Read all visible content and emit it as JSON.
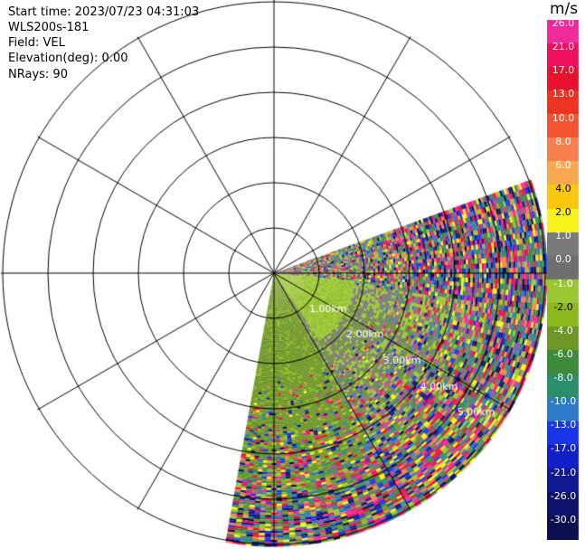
{
  "header": {
    "start_time": "Start time: 2023/07/23 04:31:03",
    "instrument": "WLS200s-181",
    "field": "Field: VEL",
    "elevation": "Elevation(deg): 0.00",
    "nrays": "NRays: 90"
  },
  "chart_data": {
    "type": "heatmap",
    "subtype": "polar-ppi",
    "field": "VEL",
    "units": "m/s",
    "sector_deg": [
      -100,
      20
    ],
    "range_rings_km": [
      1.0,
      2.0,
      3.0,
      4.0,
      5.0
    ],
    "ring_labels": [
      "1.00km",
      "2.00km",
      "3.00km",
      "4.00km",
      "5.00km"
    ],
    "colorbar": {
      "label": "m/s",
      "ticks": [
        "26.0",
        "21.0",
        "17.0",
        "13.0",
        "10.0",
        "8.0",
        "6.0",
        "4.0",
        "2.0",
        "1.0",
        "0.0",
        "-1.0",
        "-2.0",
        "-4.0",
        "-6.0",
        "-8.0",
        "-10.0",
        "-13.0",
        "-17.0",
        "-21.0",
        "-26.0",
        "-30.0"
      ],
      "colors": [
        "#f02a9a",
        "#ee1060",
        "#e8122e",
        "#ec3420",
        "#f25530",
        "#f7804c",
        "#f8a850",
        "#fbc80f",
        "#f8f31c",
        "#7a7a7a",
        "#6f6f6f",
        "#9ac832",
        "#8cb81e",
        "#6e9626",
        "#3d8a3a",
        "#2a8e6a",
        "#2a7ac8",
        "#1836e8",
        "#1020c8",
        "#101890",
        "#0c1268",
        "#0c1050"
      ],
      "range": [
        -30,
        26
      ]
    }
  }
}
